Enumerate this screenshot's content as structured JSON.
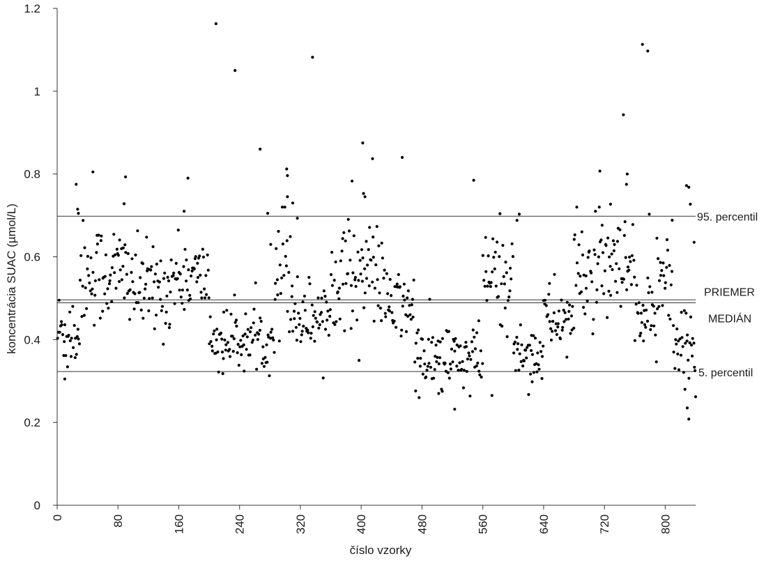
{
  "chart_data": {
    "type": "scatter",
    "title": "",
    "xlabel": "číslo vzorky",
    "ylabel": "koncentrácia SUAC  (µmol/L)",
    "xlim": [
      0,
      840
    ],
    "ylim": [
      0,
      1.2
    ],
    "x_ticks": [
      "0",
      "80",
      "160",
      "240",
      "320",
      "400",
      "480",
      "560",
      "640",
      "720",
      "800"
    ],
    "x_tick_values": [
      0,
      80,
      160,
      240,
      320,
      400,
      480,
      560,
      640,
      720,
      800
    ],
    "y_ticks": [
      "0",
      "0.2",
      "0.4",
      "0.6",
      "0.8",
      "1",
      "1.2"
    ],
    "y_tick_values": [
      0,
      0.2,
      0.4,
      0.6,
      0.8,
      1,
      1.2
    ],
    "grid": false,
    "legend": "none",
    "point_color": "#000000",
    "reference_lines": [
      {
        "label": "95. percentil",
        "value": 0.698
      },
      {
        "label": "PRIEMER",
        "value": 0.496
      },
      {
        "label": "MEDIÁN",
        "value": 0.489
      },
      {
        "label": "5. percentil",
        "value": 0.323
      }
    ],
    "segments": [
      {
        "x_range": [
          0,
          30
        ],
        "level": 0.42,
        "spread": 0.06
      },
      {
        "x_range": [
          30,
          100
        ],
        "level": 0.56,
        "spread": 0.07
      },
      {
        "x_range": [
          100,
          150
        ],
        "level": 0.52,
        "spread": 0.06
      },
      {
        "x_range": [
          150,
          200
        ],
        "level": 0.55,
        "spread": 0.05
      },
      {
        "x_range": [
          200,
          285
        ],
        "level": 0.4,
        "spread": 0.04
      },
      {
        "x_range": [
          285,
          310
        ],
        "level": 0.58,
        "spread": 0.1
      },
      {
        "x_range": [
          310,
          360
        ],
        "level": 0.46,
        "spread": 0.05
      },
      {
        "x_range": [
          360,
          430
        ],
        "level": 0.56,
        "spread": 0.07
      },
      {
        "x_range": [
          430,
          470
        ],
        "level": 0.48,
        "spread": 0.05
      },
      {
        "x_range": [
          470,
          560
        ],
        "level": 0.35,
        "spread": 0.05
      },
      {
        "x_range": [
          560,
          600
        ],
        "level": 0.55,
        "spread": 0.07
      },
      {
        "x_range": [
          600,
          640
        ],
        "level": 0.37,
        "spread": 0.04
      },
      {
        "x_range": [
          640,
          680
        ],
        "level": 0.45,
        "spread": 0.05
      },
      {
        "x_range": [
          680,
          760
        ],
        "level": 0.56,
        "spread": 0.07
      },
      {
        "x_range": [
          760,
          790
        ],
        "level": 0.44,
        "spread": 0.05
      },
      {
        "x_range": [
          790,
          810
        ],
        "level": 0.58,
        "spread": 0.08
      },
      {
        "x_range": [
          810,
          840
        ],
        "level": 0.38,
        "spread": 0.06
      }
    ],
    "outliers": [
      {
        "x": 25,
        "y": 0.775
      },
      {
        "x": 27,
        "y": 0.715
      },
      {
        "x": 28,
        "y": 0.705
      },
      {
        "x": 47,
        "y": 0.805
      },
      {
        "x": 90,
        "y": 0.793
      },
      {
        "x": 88,
        "y": 0.728
      },
      {
        "x": 167,
        "y": 0.71
      },
      {
        "x": 172,
        "y": 0.79
      },
      {
        "x": 209,
        "y": 1.163
      },
      {
        "x": 234,
        "y": 1.05
      },
      {
        "x": 267,
        "y": 0.86
      },
      {
        "x": 277,
        "y": 0.705
      },
      {
        "x": 281,
        "y": 0.63
      },
      {
        "x": 302,
        "y": 0.812
      },
      {
        "x": 303,
        "y": 0.796
      },
      {
        "x": 303,
        "y": 0.745
      },
      {
        "x": 310,
        "y": 0.73
      },
      {
        "x": 316,
        "y": 0.693
      },
      {
        "x": 336,
        "y": 1.082
      },
      {
        "x": 388,
        "y": 0.783
      },
      {
        "x": 402,
        "y": 0.875
      },
      {
        "x": 403,
        "y": 0.753
      },
      {
        "x": 405,
        "y": 0.745
      },
      {
        "x": 415,
        "y": 0.837
      },
      {
        "x": 454,
        "y": 0.84
      },
      {
        "x": 548,
        "y": 0.785
      },
      {
        "x": 608,
        "y": 0.703
      },
      {
        "x": 605,
        "y": 0.688
      },
      {
        "x": 714,
        "y": 0.807
      },
      {
        "x": 728,
        "y": 0.727
      },
      {
        "x": 745,
        "y": 0.943
      },
      {
        "x": 750,
        "y": 0.8
      },
      {
        "x": 749,
        "y": 0.775
      },
      {
        "x": 770,
        "y": 1.113
      },
      {
        "x": 777,
        "y": 1.097
      },
      {
        "x": 779,
        "y": 0.703
      },
      {
        "x": 789,
        "y": 0.645
      },
      {
        "x": 828,
        "y": 0.772
      },
      {
        "x": 831,
        "y": 0.768
      },
      {
        "x": 833,
        "y": 0.727
      },
      {
        "x": 838,
        "y": 0.635
      },
      {
        "x": 10,
        "y": 0.305
      },
      {
        "x": 218,
        "y": 0.318
      },
      {
        "x": 523,
        "y": 0.232
      },
      {
        "x": 502,
        "y": 0.27
      },
      {
        "x": 572,
        "y": 0.265
      },
      {
        "x": 625,
        "y": 0.298
      },
      {
        "x": 826,
        "y": 0.28
      },
      {
        "x": 829,
        "y": 0.235
      },
      {
        "x": 831,
        "y": 0.208
      },
      {
        "x": 840,
        "y": 0.262
      },
      {
        "x": 842,
        "y": 0.258
      },
      {
        "x": 847,
        "y": 0.3
      }
    ]
  }
}
